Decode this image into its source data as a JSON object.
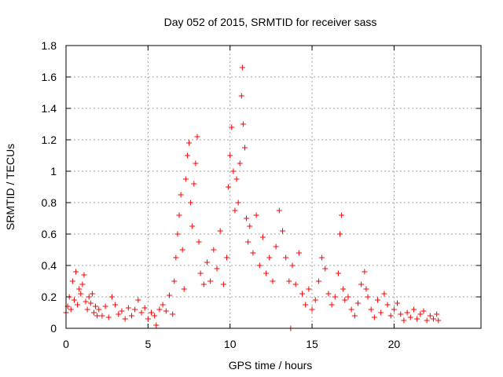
{
  "chart_data": {
    "type": "scatter",
    "title": "Day 052 of 2015, SRMTID for receiver sass",
    "xlabel": "GPS time / hours",
    "ylabel": "SRMTID / TECUs",
    "xlim": [
      0,
      25.3
    ],
    "ylim": [
      0,
      1.8
    ],
    "xticks": [
      0,
      5,
      10,
      15,
      20
    ],
    "xtick_labels": [
      "0",
      "5",
      "10",
      "15",
      "20"
    ],
    "yticks": [
      0,
      0.2,
      0.4,
      0.6,
      0.8,
      1.0,
      1.2,
      1.4,
      1.6,
      1.8
    ],
    "ytick_labels": [
      "0",
      "0.2",
      "0.4",
      "0.6",
      "0.8",
      "1",
      "1.2",
      "1.4",
      "1.6",
      "1.8"
    ],
    "grid": true,
    "marker": "+",
    "color": "#ff0000",
    "series": [
      {
        "name": "SRMTID",
        "points": [
          [
            0.0,
            0.1
          ],
          [
            0.1,
            0.14
          ],
          [
            0.2,
            0.2
          ],
          [
            0.3,
            0.12
          ],
          [
            0.4,
            0.3
          ],
          [
            0.5,
            0.18
          ],
          [
            0.6,
            0.36
          ],
          [
            0.7,
            0.15
          ],
          [
            0.8,
            0.25
          ],
          [
            0.9,
            0.22
          ],
          [
            1.0,
            0.28
          ],
          [
            1.1,
            0.34
          ],
          [
            1.2,
            0.17
          ],
          [
            1.3,
            0.12
          ],
          [
            1.4,
            0.2
          ],
          [
            1.5,
            0.16
          ],
          [
            1.6,
            0.22
          ],
          [
            1.7,
            0.1
          ],
          [
            1.8,
            0.14
          ],
          [
            1.9,
            0.08
          ],
          [
            2.0,
            0.12
          ],
          [
            2.2,
            0.08
          ],
          [
            2.4,
            0.14
          ],
          [
            2.6,
            0.07
          ],
          [
            2.8,
            0.2
          ],
          [
            3.0,
            0.15
          ],
          [
            3.2,
            0.09
          ],
          [
            3.4,
            0.11
          ],
          [
            3.6,
            0.06
          ],
          [
            3.8,
            0.13
          ],
          [
            4.0,
            0.08
          ],
          [
            4.2,
            0.12
          ],
          [
            4.4,
            0.18
          ],
          [
            4.6,
            0.1
          ],
          [
            4.8,
            0.13
          ],
          [
            5.0,
            0.06
          ],
          [
            5.2,
            0.1
          ],
          [
            5.4,
            0.08
          ],
          [
            5.5,
            0.02
          ],
          [
            5.7,
            0.12
          ],
          [
            5.9,
            0.15
          ],
          [
            6.1,
            0.11
          ],
          [
            6.3,
            0.21
          ],
          [
            6.5,
            0.09
          ],
          [
            6.6,
            0.3
          ],
          [
            6.7,
            0.45
          ],
          [
            6.8,
            0.6
          ],
          [
            6.9,
            0.72
          ],
          [
            7.0,
            0.85
          ],
          [
            7.1,
            0.5
          ],
          [
            7.2,
            0.25
          ],
          [
            7.3,
            0.95
          ],
          [
            7.4,
            1.1
          ],
          [
            7.5,
            1.18
          ],
          [
            7.6,
            0.8
          ],
          [
            7.7,
            0.65
          ],
          [
            7.8,
            0.92
          ],
          [
            7.9,
            1.05
          ],
          [
            8.0,
            1.22
          ],
          [
            8.1,
            0.55
          ],
          [
            8.2,
            0.35
          ],
          [
            8.4,
            0.28
          ],
          [
            8.6,
            0.42
          ],
          [
            8.8,
            0.3
          ],
          [
            9.0,
            0.5
          ],
          [
            9.2,
            0.38
          ],
          [
            9.4,
            0.62
          ],
          [
            9.6,
            0.28
          ],
          [
            9.8,
            0.45
          ],
          [
            9.9,
            0.9
          ],
          [
            10.0,
            1.1
          ],
          [
            10.1,
            1.28
          ],
          [
            10.2,
            1.0
          ],
          [
            10.3,
            0.75
          ],
          [
            10.4,
            0.95
          ],
          [
            10.5,
            0.8
          ],
          [
            10.6,
            1.05
          ],
          [
            10.7,
            1.48
          ],
          [
            10.75,
            1.66
          ],
          [
            10.8,
            1.3
          ],
          [
            10.9,
            1.15
          ],
          [
            11.0,
            0.7
          ],
          [
            11.1,
            0.55
          ],
          [
            11.2,
            0.65
          ],
          [
            11.4,
            0.48
          ],
          [
            11.6,
            0.72
          ],
          [
            11.8,
            0.4
          ],
          [
            12.0,
            0.58
          ],
          [
            12.2,
            0.35
          ],
          [
            12.4,
            0.45
          ],
          [
            12.6,
            0.3
          ],
          [
            12.8,
            0.52
          ],
          [
            13.0,
            0.75
          ],
          [
            13.2,
            0.62
          ],
          [
            13.4,
            0.45
          ],
          [
            13.6,
            0.3
          ],
          [
            13.7,
            0.0
          ],
          [
            13.8,
            0.4
          ],
          [
            14.0,
            0.28
          ],
          [
            14.2,
            0.48
          ],
          [
            14.4,
            0.22
          ],
          [
            14.6,
            0.15
          ],
          [
            14.8,
            0.25
          ],
          [
            15.0,
            0.12
          ],
          [
            15.2,
            0.18
          ],
          [
            15.4,
            0.3
          ],
          [
            15.6,
            0.45
          ],
          [
            15.8,
            0.38
          ],
          [
            16.0,
            0.22
          ],
          [
            16.2,
            0.15
          ],
          [
            16.4,
            0.2
          ],
          [
            16.6,
            0.35
          ],
          [
            16.7,
            0.6
          ],
          [
            16.8,
            0.72
          ],
          [
            16.9,
            0.25
          ],
          [
            17.0,
            0.18
          ],
          [
            17.2,
            0.2
          ],
          [
            17.4,
            0.12
          ],
          [
            17.6,
            0.08
          ],
          [
            17.8,
            0.16
          ],
          [
            18.0,
            0.28
          ],
          [
            18.2,
            0.36
          ],
          [
            18.3,
            0.25
          ],
          [
            18.4,
            0.2
          ],
          [
            18.6,
            0.12
          ],
          [
            18.8,
            0.07
          ],
          [
            19.0,
            0.18
          ],
          [
            19.2,
            0.1
          ],
          [
            19.4,
            0.22
          ],
          [
            19.6,
            0.15
          ],
          [
            19.8,
            0.08
          ],
          [
            20.0,
            0.12
          ],
          [
            20.2,
            0.16
          ],
          [
            20.4,
            0.09
          ],
          [
            20.6,
            0.05
          ],
          [
            20.8,
            0.1
          ],
          [
            21.0,
            0.07
          ],
          [
            21.2,
            0.12
          ],
          [
            21.4,
            0.06
          ],
          [
            21.6,
            0.09
          ],
          [
            21.8,
            0.11
          ],
          [
            22.0,
            0.05
          ],
          [
            22.2,
            0.08
          ],
          [
            22.4,
            0.06
          ],
          [
            22.6,
            0.09
          ],
          [
            22.7,
            0.05
          ]
        ]
      }
    ]
  }
}
